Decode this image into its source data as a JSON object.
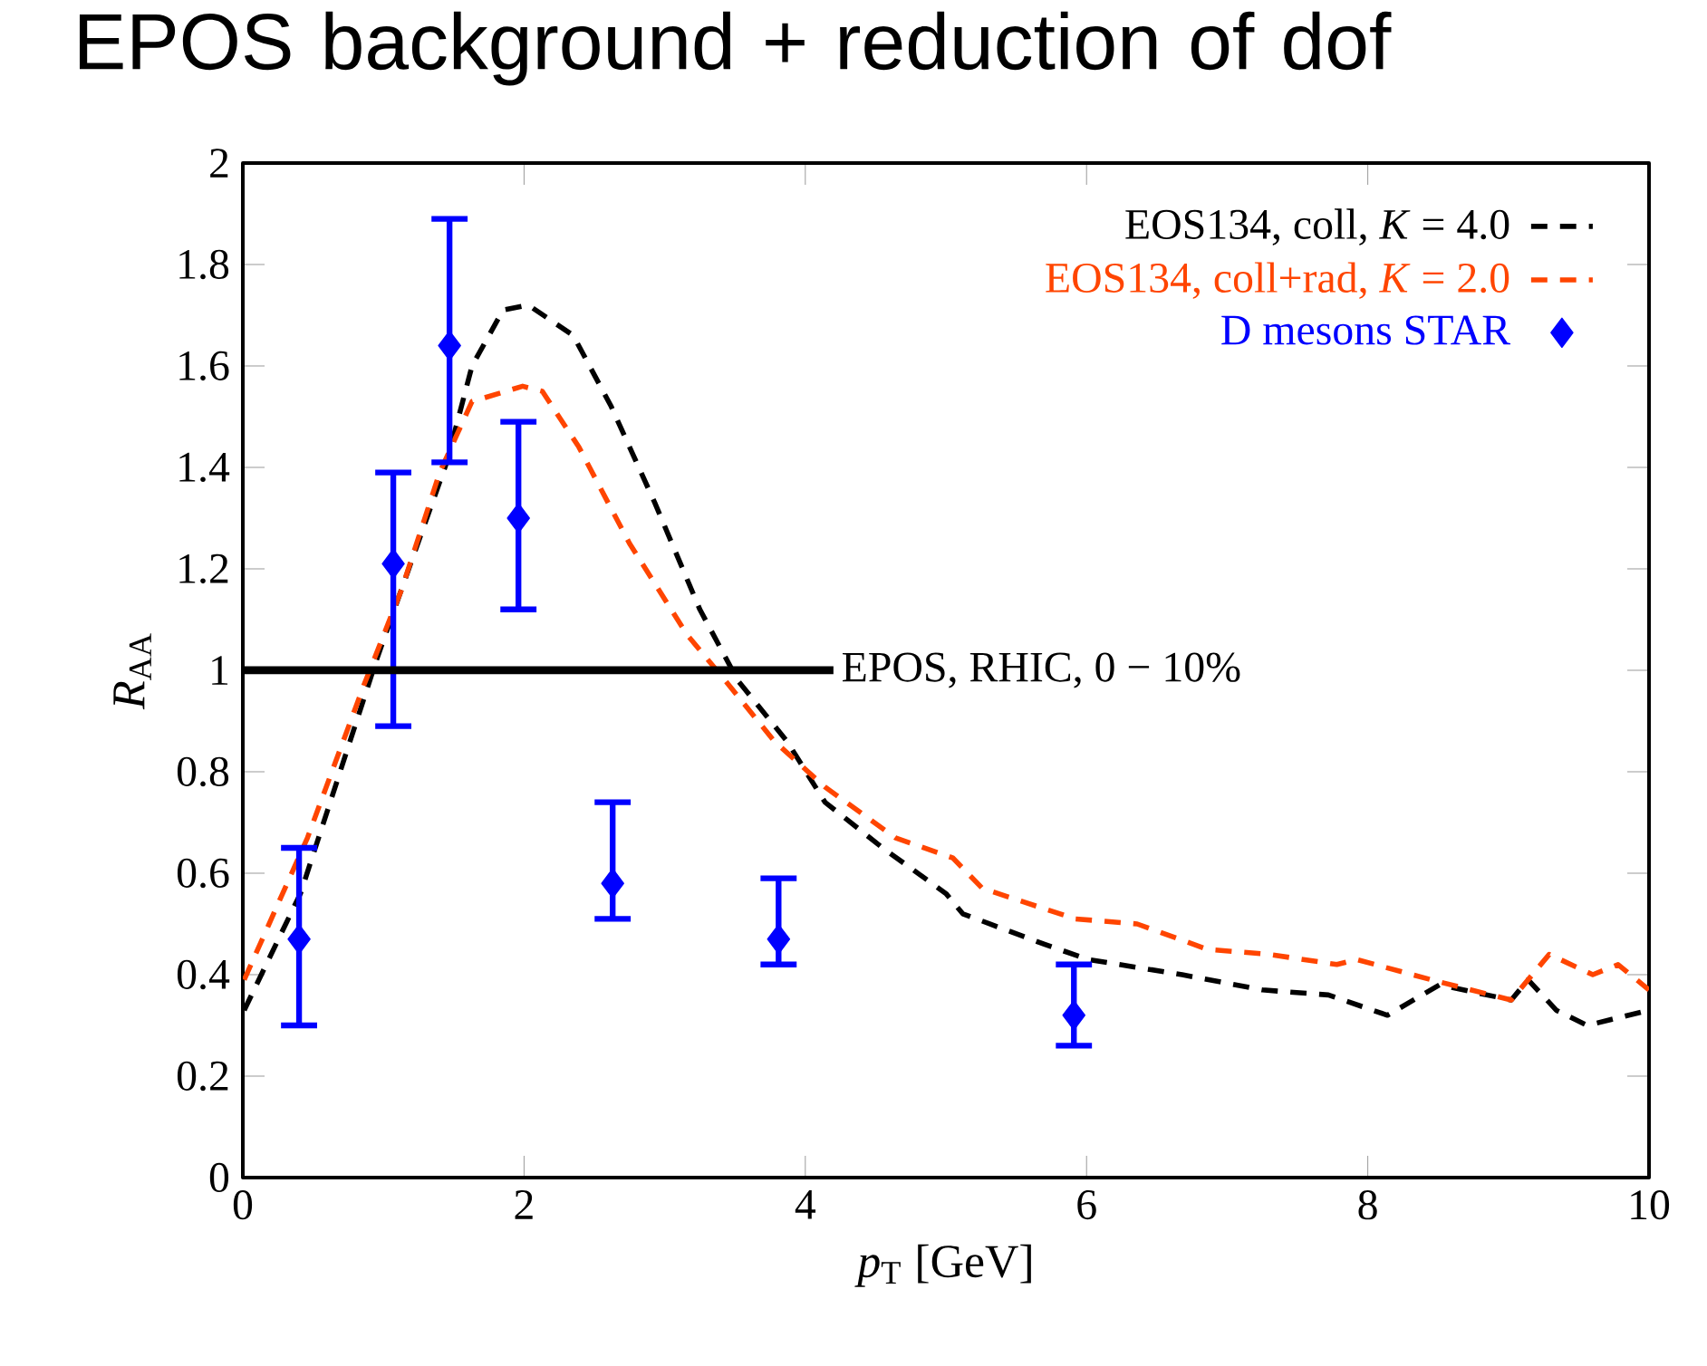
{
  "chart_data": {
    "type": "line",
    "title": "EPOS background + reduction of dof",
    "xlabel": "*p*$_{T}$ [GeV]",
    "ylabel": "*R*$_{AA}$",
    "xlim": [
      0,
      10
    ],
    "ylim": [
      0,
      2
    ],
    "xticks": [
      0,
      2,
      4,
      6,
      8,
      10
    ],
    "yticks": [
      0,
      0.2,
      0.4,
      0.6,
      0.8,
      1,
      1.2,
      1.4,
      1.6,
      1.8,
      2
    ],
    "legend": "top right",
    "series": [
      {
        "name": "EOS134, coll, *K* = 4.0",
        "color": "#000000",
        "line_style": "dashed",
        "marker": "none",
        "x": [
          0.01,
          0.41,
          0.95,
          1.18,
          1.45,
          1.63,
          1.85,
          2.03,
          2.35,
          2.62,
          2.93,
          3.25,
          3.52,
          3.87,
          4.14,
          4.55,
          5.0,
          5.12,
          5.7,
          6.01,
          6.68,
          7.25,
          7.72,
          8.14,
          8.51,
          9.02,
          9.14,
          9.34,
          9.56,
          10
        ],
        "values": [
          0.33,
          0.56,
          1.02,
          1.2,
          1.41,
          1.6,
          1.71,
          1.72,
          1.66,
          1.52,
          1.33,
          1.12,
          0.98,
          0.86,
          0.74,
          0.65,
          0.56,
          0.52,
          0.46,
          0.43,
          0.4,
          0.37,
          0.36,
          0.32,
          0.38,
          0.35,
          0.39,
          0.33,
          0.3,
          0.33
        ]
      },
      {
        "name": "EOS134, coll+rad, *K* = 2.0",
        "color": "#ff4500",
        "line_style": "dashed",
        "marker": "none",
        "x": [
          0.01,
          0.46,
          0.86,
          1.13,
          1.4,
          1.63,
          1.99,
          2.13,
          2.39,
          2.75,
          3.16,
          3.43,
          3.78,
          4.14,
          4.64,
          5.05,
          5.26,
          5.7,
          5.92,
          6.36,
          6.86,
          7.3,
          7.78,
          7.92,
          8.45,
          9.02,
          9.29,
          9.6,
          9.78,
          10
        ],
        "values": [
          0.39,
          0.67,
          0.97,
          1.16,
          1.39,
          1.53,
          1.56,
          1.55,
          1.44,
          1.25,
          1.07,
          0.98,
          0.86,
          0.77,
          0.67,
          0.63,
          0.57,
          0.53,
          0.51,
          0.5,
          0.45,
          0.44,
          0.42,
          0.43,
          0.39,
          0.35,
          0.44,
          0.4,
          0.42,
          0.37
        ]
      },
      {
        "name": "D mesons STAR",
        "type": "scatter",
        "color": "#0000ff",
        "marker": "diamond",
        "x": [
          0.4,
          1.07,
          1.47,
          1.96,
          2.63,
          3.81,
          5.91
        ],
        "values": [
          0.47,
          1.21,
          1.64,
          1.3,
          0.58,
          0.47,
          0.32
        ],
        "errors": [
          [
            0.3,
            0.65
          ],
          [
            0.89,
            1.39
          ],
          [
            1.41,
            1.89
          ],
          [
            1.12,
            1.49
          ],
          [
            0.51,
            0.74
          ],
          [
            0.42,
            0.59
          ],
          [
            0.26,
            0.42
          ]
        ]
      },
      {
        "name": "EPOS, RHIC, 0 − 10%",
        "color": "#000000",
        "line_style": "solid",
        "marker": "none",
        "x": [
          0,
          4.2
        ],
        "values": [
          1,
          1
        ]
      }
    ]
  }
}
